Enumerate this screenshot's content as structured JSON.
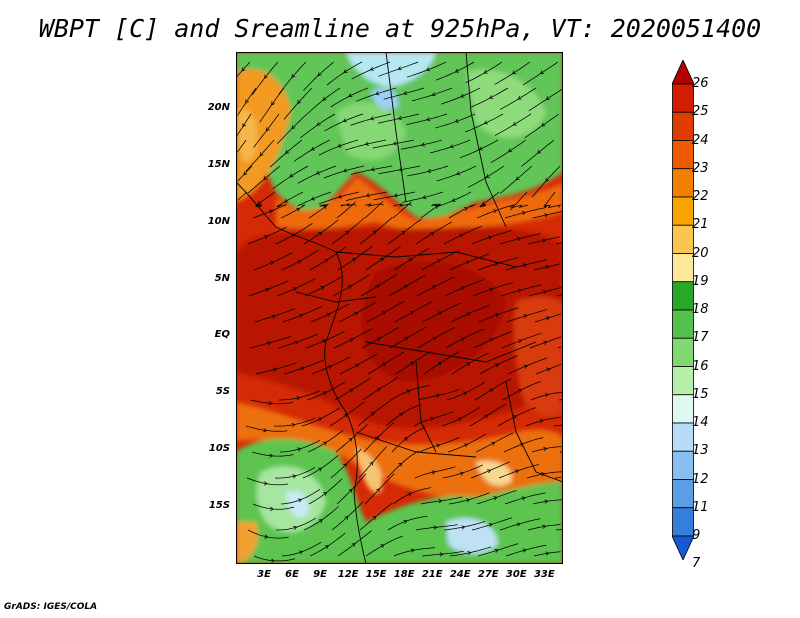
{
  "title": "WBPT [C] and Sreamline at 925hPa, VT: 2020051400",
  "credit": "GrADS: IGES/COLA",
  "map": {
    "lon_range": [
      0,
      35
    ],
    "lat_range": [
      -20,
      25
    ],
    "lat_labels": [
      "20N",
      "15N",
      "10N",
      "5N",
      "EQ",
      "5S",
      "10S",
      "15S"
    ],
    "lon_labels": [
      "3E",
      "6E",
      "9E",
      "12E",
      "15E",
      "18E",
      "21E",
      "24E",
      "27E",
      "30E",
      "33E"
    ]
  },
  "colorbar": {
    "labels": [
      "26",
      "25",
      "24",
      "23",
      "22",
      "21",
      "20",
      "19",
      "18",
      "17",
      "16",
      "15",
      "14",
      "13",
      "12",
      "11",
      "9",
      "7"
    ],
    "colors": [
      "#b40000",
      "#d21e00",
      "#e03c00",
      "#ee5a00",
      "#f27f00",
      "#f7a400",
      "#fbc650",
      "#fde99a",
      "#28a828",
      "#52c04a",
      "#80d870",
      "#b6eeaa",
      "#e0f8f2",
      "#b6dcf6",
      "#86bff0",
      "#5a9fe6",
      "#327fdc",
      "#1858d0"
    ]
  }
}
